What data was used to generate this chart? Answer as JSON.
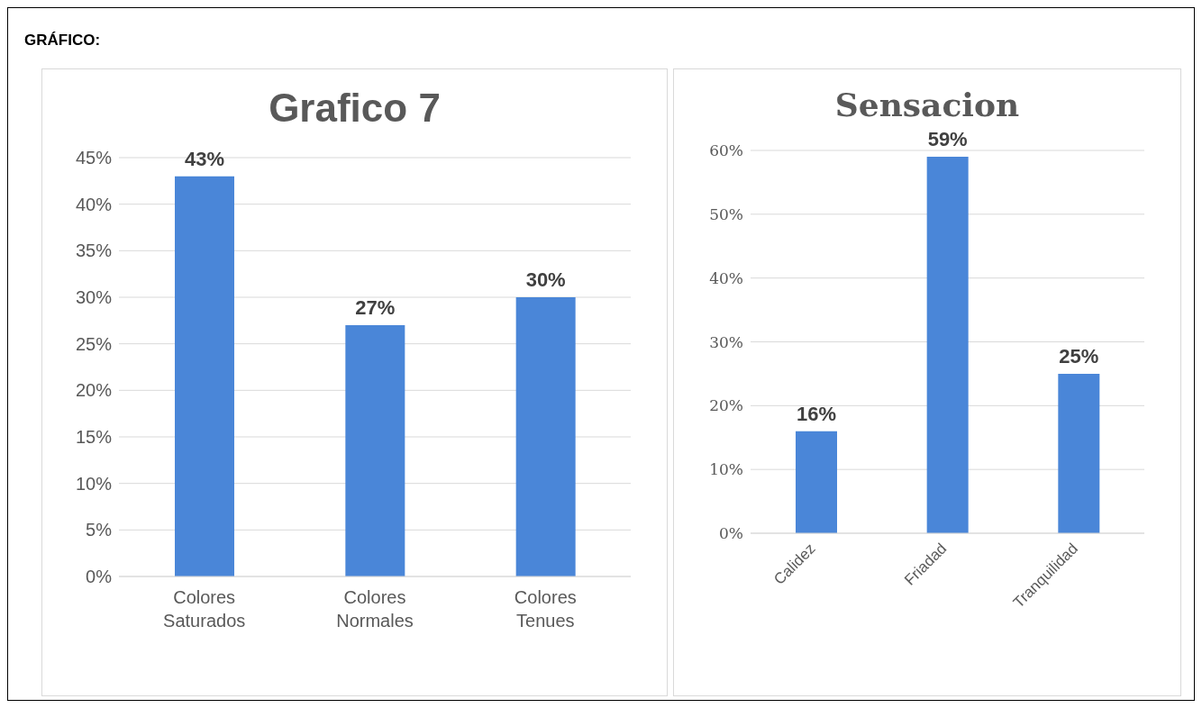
{
  "chart_data": [
    {
      "type": "bar",
      "title": "Grafico 7",
      "annotations": [
        "GRÁFICO:"
      ],
      "categories": [
        "Colores Saturados",
        "Colores Normales",
        "Colores Tenues"
      ],
      "values": [
        43,
        27,
        30
      ],
      "color": "#4a86d8",
      "value_labels": [
        "43%",
        "27%",
        "30%"
      ],
      "ylim": [
        0,
        45
      ],
      "yticks": [
        {
          "value": 0,
          "label": "0%"
        },
        {
          "value": 5,
          "label": "5%"
        },
        {
          "value": 10,
          "label": "10%"
        },
        {
          "value": 15,
          "label": "15%"
        },
        {
          "value": 20,
          "label": "20%"
        },
        {
          "value": 25,
          "label": "25%"
        },
        {
          "value": 30,
          "label": "30%"
        },
        {
          "value": 35,
          "label": "35%"
        },
        {
          "value": 40,
          "label": "40%"
        },
        {
          "value": 45,
          "label": "45%"
        }
      ],
      "grid": "y",
      "legend": false
    },
    {
      "type": "bar",
      "title": "Sensacion",
      "categories": [
        "Calidez",
        "Friadad",
        "Tranquilidad"
      ],
      "values": [
        16,
        59,
        25
      ],
      "color": "#4a86d8",
      "value_labels": [
        "16%",
        "59%",
        "25%"
      ],
      "ylim": [
        0,
        60
      ],
      "yticks": [
        {
          "value": 0,
          "label": "0%"
        },
        {
          "value": 10,
          "label": "10%"
        },
        {
          "value": 20,
          "label": "20%"
        },
        {
          "value": 30,
          "label": "30%"
        },
        {
          "value": 40,
          "label": "40%"
        },
        {
          "value": 50,
          "label": "50%"
        },
        {
          "value": 60,
          "label": "60%"
        }
      ],
      "grid": "y",
      "legend": false
    }
  ]
}
